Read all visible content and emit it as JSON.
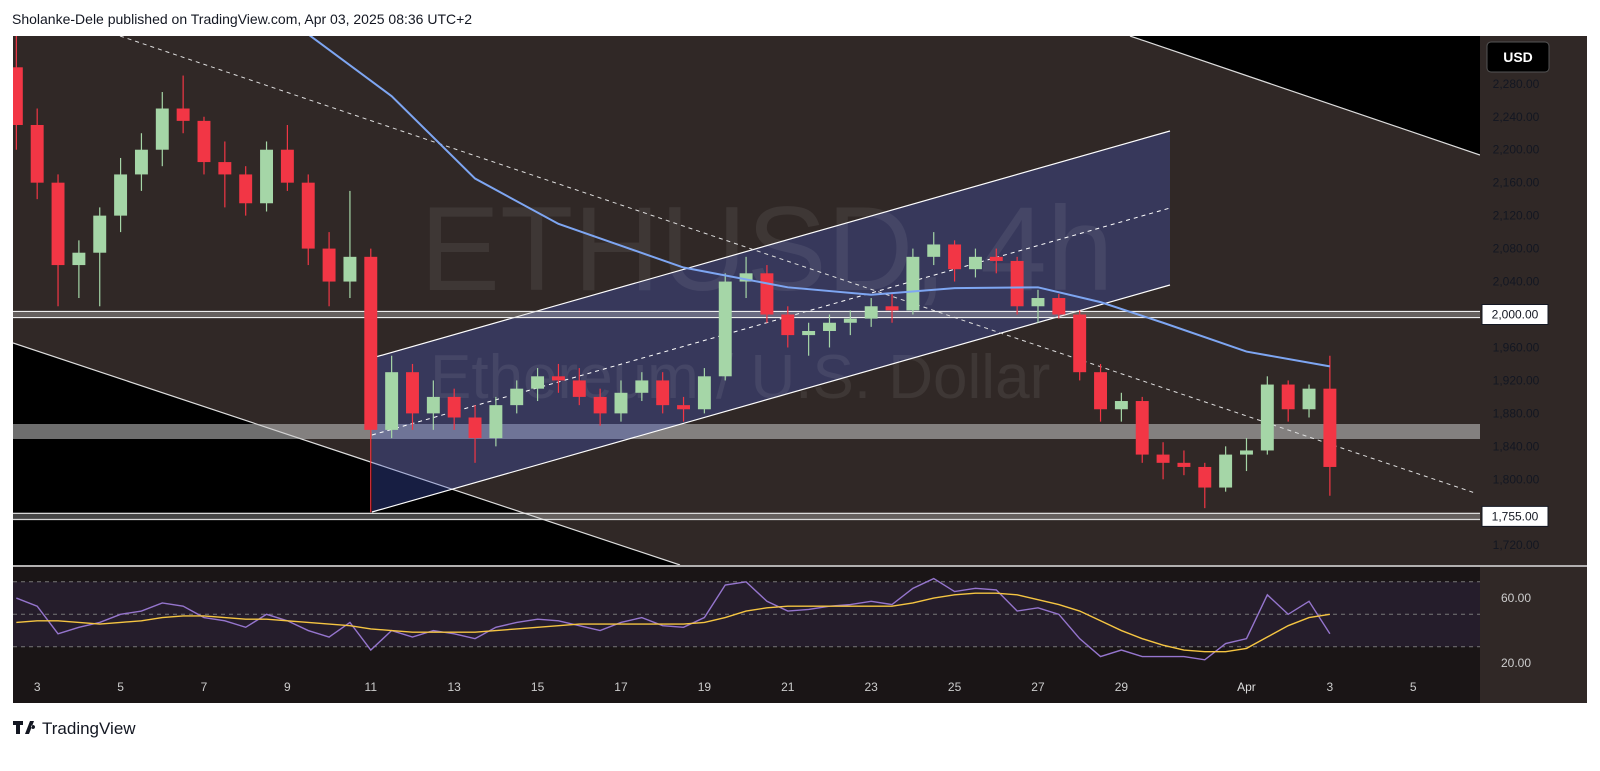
{
  "header": {
    "attribution": "Sholanke-Dele published on TradingView.com, Apr 03, 2025 08:36 UTC+2"
  },
  "chart_data": {
    "type": "candlestick",
    "title": "ETHUSD, 4h",
    "subtitle": "Ethereum / U.S. Dollar",
    "currency": "USD",
    "up_color": "#a5d6a7",
    "down_color": "#f23645",
    "x": [
      2.5,
      3,
      3.5,
      4,
      4.5,
      5,
      5.5,
      6,
      6.5,
      7,
      7.5,
      8,
      8.5,
      9,
      9.5,
      10,
      10.5,
      11,
      11.5,
      12,
      12.5,
      13,
      13.5,
      14,
      14.5,
      15,
      15.5,
      16,
      16.5,
      17,
      17.5,
      18,
      18.5,
      19,
      19.5,
      20,
      20.5,
      21,
      21.5,
      22,
      22.5,
      23,
      23.5,
      24,
      24.5,
      25,
      25.5,
      26,
      26.5,
      27,
      27.5,
      28,
      28.5,
      29,
      29.5,
      30,
      30.5,
      31,
      31.5,
      32,
      32.5,
      33,
      33.5,
      34
    ],
    "open": [
      2300,
      2230,
      2160,
      2060,
      2075,
      2120,
      2170,
      2200,
      2250,
      2235,
      2185,
      2170,
      2135,
      2200,
      2160,
      2080,
      2040,
      2070,
      1860,
      1930,
      1880,
      1900,
      1875,
      1850,
      1890,
      1910,
      1925,
      1920,
      1900,
      1880,
      1905,
      1920,
      1890,
      1885,
      1925,
      2040,
      2050,
      2000,
      1975,
      1980,
      1990,
      1995,
      2010,
      2005,
      2070,
      2085,
      2055,
      2070,
      2065,
      2010,
      2020,
      2000,
      1930,
      1885,
      1895,
      1830,
      1820,
      1815,
      1790,
      1830,
      1835,
      1915,
      1885,
      1910
    ],
    "high": [
      2338,
      2250,
      2170,
      2090,
      2130,
      2190,
      2220,
      2270,
      2290,
      2240,
      2210,
      2180,
      2210,
      2230,
      2170,
      2100,
      2150,
      2080,
      1950,
      1940,
      1920,
      1910,
      1890,
      1900,
      1920,
      1935,
      1940,
      1935,
      1910,
      1920,
      1930,
      1930,
      1900,
      1935,
      2050,
      2070,
      2060,
      2010,
      1990,
      2000,
      2005,
      2020,
      2025,
      2080,
      2100,
      2090,
      2080,
      2080,
      2070,
      2030,
      2025,
      2005,
      1940,
      1905,
      1900,
      1845,
      1835,
      1820,
      1840,
      1850,
      1925,
      1920,
      1915,
      1950
    ],
    "low": [
      2200,
      2140,
      2010,
      2020,
      2010,
      2100,
      2150,
      2180,
      2220,
      2170,
      2130,
      2120,
      2125,
      2150,
      2060,
      2010,
      2020,
      1760,
      1850,
      1860,
      1860,
      1860,
      1820,
      1840,
      1880,
      1895,
      1905,
      1890,
      1865,
      1870,
      1895,
      1880,
      1870,
      1880,
      1920,
      2020,
      1990,
      1960,
      1950,
      1960,
      1975,
      1985,
      1990,
      2000,
      2060,
      2040,
      2045,
      2050,
      2000,
      1990,
      1995,
      1920,
      1870,
      1870,
      1820,
      1800,
      1805,
      1765,
      1785,
      1810,
      1830,
      1870,
      1875,
      1780
    ],
    "close": [
      2230,
      2160,
      2060,
      2075,
      2120,
      2170,
      2200,
      2250,
      2235,
      2185,
      2170,
      2135,
      2200,
      2160,
      2080,
      2040,
      2070,
      1860,
      1930,
      1880,
      1900,
      1875,
      1850,
      1890,
      1910,
      1925,
      1920,
      1900,
      1880,
      1905,
      1920,
      1890,
      1885,
      1925,
      2040,
      2050,
      2000,
      1975,
      1980,
      1990,
      1995,
      2010,
      2005,
      2070,
      2085,
      2055,
      2070,
      2065,
      2010,
      2020,
      2000,
      1930,
      1885,
      1895,
      1830,
      1820,
      1815,
      1790,
      1830,
      1835,
      1915,
      1885,
      1910,
      1815
    ],
    "xlim": [
      2.42,
      37.6
    ],
    "xticks": [
      3,
      5,
      7,
      9,
      11,
      13,
      15,
      17,
      19,
      21,
      23,
      25,
      27,
      29,
      {
        "value": 32,
        "label": "Apr"
      },
      {
        "value": 34,
        "label": "3"
      },
      {
        "value": 36,
        "label": "5"
      }
    ],
    "ylim": [
      1696,
      2338
    ],
    "yticks": [
      {
        "value": 1720,
        "label": "1,720.00"
      },
      {
        "value": 1800,
        "label": "1,800.00"
      },
      {
        "value": 1840,
        "label": "1,840.00"
      },
      {
        "value": 1880,
        "label": "1,880.00"
      },
      {
        "value": 1920,
        "label": "1,920.00"
      },
      {
        "value": 1960,
        "label": "1,960.00"
      },
      {
        "value": 2040,
        "label": "2,040.00"
      },
      {
        "value": 2080,
        "label": "2,080.00"
      },
      {
        "value": 2120,
        "label": "2,120.00"
      },
      {
        "value": 2160,
        "label": "2,160.00"
      },
      {
        "value": 2200,
        "label": "2,200.00"
      },
      {
        "value": 2240,
        "label": "2,240.00"
      },
      {
        "value": 2280,
        "label": "2,280.00"
      }
    ],
    "levels": [
      {
        "value": 2000,
        "label": "2,000.00"
      },
      {
        "value": 1755,
        "label": "1,755.00"
      }
    ],
    "ma": {
      "color": "#7ea6f2",
      "x": [
        9.5,
        11.5,
        13.5,
        15.5,
        18.5,
        21,
        23,
        25,
        27,
        28.5,
        30,
        32,
        34
      ],
      "values": [
        2340,
        2265,
        2165,
        2110,
        2057,
        2033,
        2024,
        2032,
        2033,
        2015,
        1990,
        1955,
        1937
      ]
    },
    "rsi": {
      "color": "#9575cd",
      "ylim": [
        -4.6,
        78.5
      ],
      "yticks": [
        {
          "value": 60,
          "label": "60.00"
        },
        {
          "value": 20,
          "label": "20.00"
        }
      ],
      "bands": [
        70,
        50,
        30
      ],
      "values": [
        60,
        55,
        38,
        42,
        45,
        50,
        52,
        57,
        55,
        48,
        46,
        42,
        50,
        46,
        40,
        36,
        45,
        28,
        40,
        36,
        40,
        38,
        35,
        42,
        45,
        47,
        46,
        43,
        40,
        45,
        48,
        43,
        42,
        48,
        68,
        70,
        58,
        52,
        53,
        55,
        56,
        58,
        56,
        66,
        72,
        64,
        66,
        65,
        52,
        54,
        50,
        35,
        24,
        28,
        24,
        24,
        24,
        22,
        32,
        35,
        62,
        50,
        58,
        38
      ]
    },
    "rsi_ma": {
      "color": "#f5c542",
      "values": [
        45,
        46,
        46,
        45,
        44,
        45,
        46,
        48,
        49,
        49,
        48,
        47,
        47,
        46,
        45,
        44,
        43,
        41,
        40,
        39,
        39,
        39,
        39,
        40,
        41,
        42,
        43,
        44,
        44,
        44,
        44,
        44,
        44,
        45,
        48,
        52,
        54,
        55,
        55,
        55,
        55,
        55,
        55,
        57,
        60,
        62,
        63,
        63,
        62,
        59,
        56,
        52,
        46,
        40,
        35,
        31,
        28,
        27,
        27,
        29,
        36,
        43,
        48,
        50
      ]
    }
  },
  "footer": {
    "brand": "TradingView"
  }
}
